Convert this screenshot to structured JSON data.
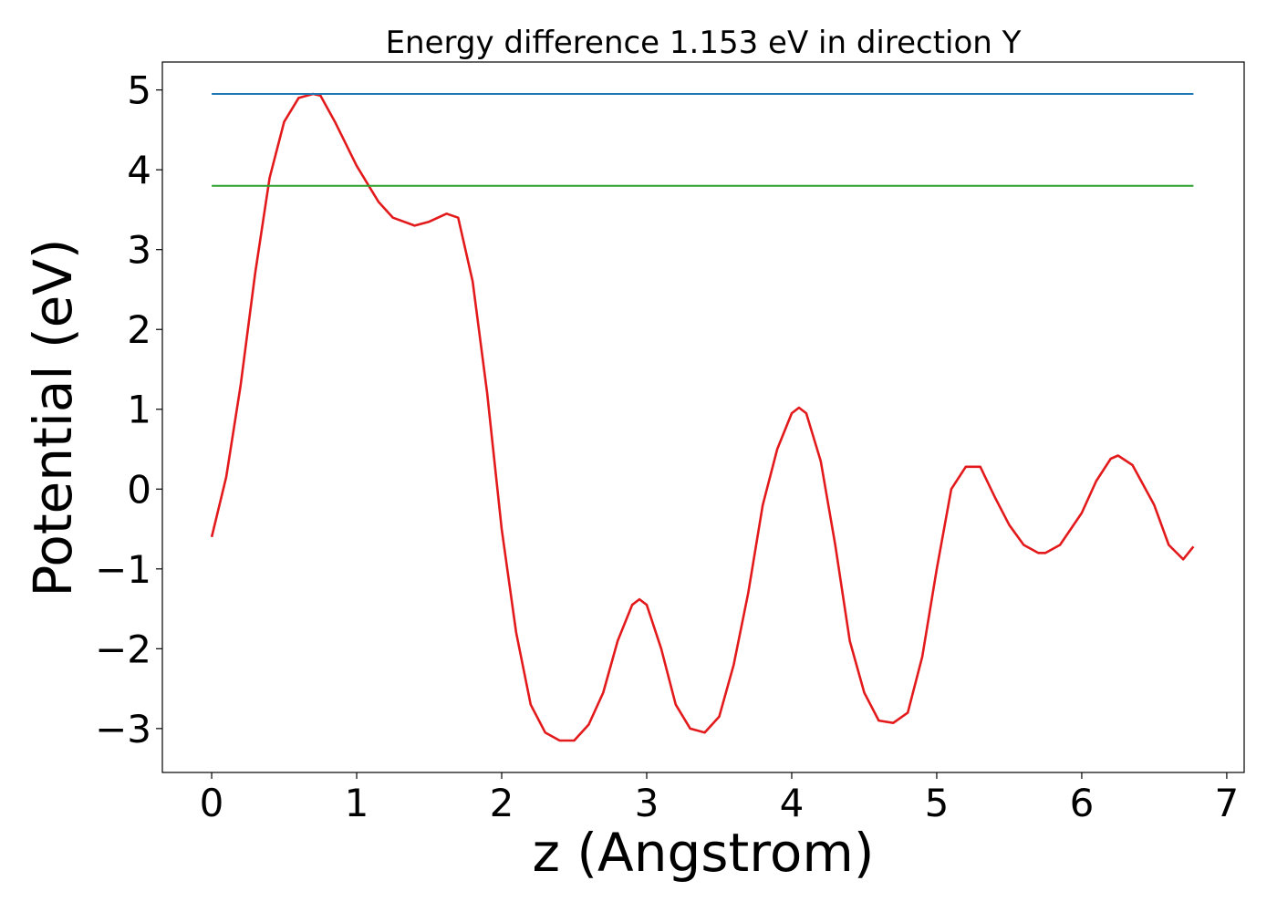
{
  "chart_data": {
    "type": "line",
    "title": "Energy difference 1.153 eV in direction Y",
    "xlabel": "z (Angstrom)",
    "ylabel": "Potential (eV)",
    "xlim": [
      -0.34,
      7.12
    ],
    "ylim": [
      -3.55,
      5.35
    ],
    "xticks": [
      0,
      1,
      2,
      3,
      4,
      5,
      6,
      7
    ],
    "xtick_labels": [
      "0",
      "1",
      "2",
      "3",
      "4",
      "5",
      "6",
      "7"
    ],
    "yticks": [
      -3,
      -2,
      -1,
      0,
      1,
      2,
      3,
      4,
      5
    ],
    "ytick_labels": [
      "−3",
      "−2",
      "−1",
      "0",
      "1",
      "2",
      "3",
      "4",
      "5"
    ],
    "grid": false,
    "series": [
      {
        "color": "#e31a1c",
        "x": [
          0.0,
          0.1,
          0.2,
          0.3,
          0.4,
          0.5,
          0.6,
          0.7,
          0.75,
          0.85,
          1.0,
          1.15,
          1.25,
          1.4,
          1.5,
          1.62,
          1.7,
          1.8,
          1.9,
          2.0,
          2.1,
          2.2,
          2.3,
          2.4,
          2.5,
          2.6,
          2.7,
          2.8,
          2.9,
          2.95,
          3.0,
          3.1,
          3.2,
          3.3,
          3.4,
          3.5,
          3.6,
          3.7,
          3.8,
          3.9,
          4.0,
          4.05,
          4.1,
          4.2,
          4.3,
          4.4,
          4.5,
          4.6,
          4.7,
          4.8,
          4.9,
          5.0,
          5.1,
          5.2,
          5.3,
          5.4,
          5.5,
          5.6,
          5.7,
          5.75,
          5.85,
          6.0,
          6.1,
          6.2,
          6.25,
          6.35,
          6.5,
          6.6,
          6.7,
          6.77
        ],
        "y": [
          -0.6,
          0.15,
          1.3,
          2.7,
          3.9,
          4.6,
          4.9,
          4.95,
          4.93,
          4.6,
          4.05,
          3.6,
          3.4,
          3.3,
          3.35,
          3.45,
          3.4,
          2.6,
          1.2,
          -0.5,
          -1.8,
          -2.7,
          -3.05,
          -3.15,
          -3.15,
          -2.95,
          -2.55,
          -1.9,
          -1.45,
          -1.38,
          -1.45,
          -2.0,
          -2.7,
          -3.0,
          -3.05,
          -2.85,
          -2.2,
          -1.3,
          -0.2,
          0.5,
          0.95,
          1.02,
          0.95,
          0.35,
          -0.7,
          -1.9,
          -2.55,
          -2.9,
          -2.93,
          -2.8,
          -2.1,
          -1.0,
          0.0,
          0.28,
          0.28,
          -0.1,
          -0.45,
          -0.7,
          -0.8,
          -0.8,
          -0.7,
          -0.3,
          0.1,
          0.38,
          0.42,
          0.3,
          -0.2,
          -0.7,
          -0.88,
          -0.72
        ]
      },
      {
        "color": "#1f77b4",
        "x": [
          0.0,
          6.77
        ],
        "y": [
          4.95,
          4.95
        ]
      },
      {
        "color": "#2ca02c",
        "x": [
          0.0,
          6.77
        ],
        "y": [
          3.8,
          3.8
        ]
      }
    ]
  }
}
